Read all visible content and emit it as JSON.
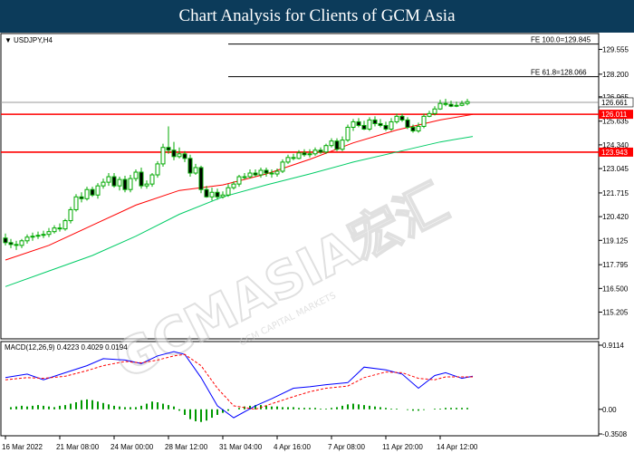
{
  "header": {
    "title": "Chart Analysis for Clients of GCM Asia"
  },
  "symbol_label": "USDJPY,H4",
  "watermark": {
    "main": "GCMASIA宏汇",
    "sub": "GCM CAPITAL MARKETS"
  },
  "chart_data": [
    {
      "type": "line",
      "title": "USDJPY,H4",
      "xlabel": "",
      "ylabel": "",
      "x_tick_labels": [
        "16 Mar 2022",
        "21 Mar 08:00",
        "24 Mar 00:00",
        "28 Mar 12:00",
        "31 Mar 04:00",
        "4 Apr 16:00",
        "7 Apr 08:00",
        "11 Apr 20:00",
        "14 Apr 12:00"
      ],
      "y_ticks": [
        "129.555",
        "128.200",
        "126.965",
        "125.635",
        "124.340",
        "123.045",
        "121.715",
        "120.420",
        "119.125",
        "117.795",
        "116.500",
        "115.205"
      ],
      "ylim": [
        115.205,
        130.2
      ],
      "price_levels": [
        {
          "label": "FE 100.0=129.845",
          "value": 129.845,
          "color": "#000000"
        },
        {
          "label": "FE 61.8=128.066",
          "value": 128.066,
          "color": "#000000"
        },
        {
          "label": "126.661",
          "value": 126.661,
          "color": "#808080"
        },
        {
          "label": "126.011",
          "value": 126.011,
          "color": "#ff0000"
        },
        {
          "label": "123.943",
          "value": 123.943,
          "color": "#ff0000"
        }
      ],
      "series": [
        {
          "kind": "candles",
          "color": "#00aa00",
          "open": [
            119.25,
            119.0,
            118.9,
            118.85,
            119.1,
            119.3,
            119.35,
            119.4,
            119.45,
            119.6,
            119.8,
            119.75,
            120.2,
            120.8,
            121.5,
            121.4,
            121.9,
            121.6,
            122.1,
            122.3,
            122.6,
            122.1,
            122.45,
            121.9,
            122.5,
            122.85,
            122.1,
            122.2,
            122.7,
            123.3,
            124.2,
            124.05,
            123.7,
            123.85,
            123.6,
            122.8,
            123.1,
            121.9,
            121.5,
            121.75,
            121.5,
            121.6,
            122.0,
            122.2,
            122.6,
            122.6,
            122.8,
            122.7,
            122.95,
            122.8,
            122.75,
            122.9,
            123.4,
            123.65,
            123.6,
            123.9,
            123.8,
            123.85,
            124.05,
            123.95,
            124.3,
            124.55,
            124.1,
            124.6,
            125.3,
            125.6,
            125.4,
            125.2,
            125.7,
            125.5,
            125.4,
            125.2,
            125.6,
            125.9,
            125.7,
            125.3,
            125.1,
            125.35,
            125.9,
            126.05,
            126.3,
            126.6,
            126.55,
            126.45,
            126.5,
            126.6
          ],
          "high": [
            119.5,
            119.2,
            119.1,
            119.2,
            119.45,
            119.55,
            119.6,
            119.65,
            119.8,
            119.95,
            120.05,
            120.3,
            120.95,
            121.65,
            121.75,
            122.05,
            122.05,
            122.25,
            122.5,
            122.8,
            122.8,
            122.6,
            122.65,
            122.7,
            123.0,
            123.1,
            122.4,
            122.8,
            123.45,
            124.4,
            125.35,
            124.5,
            124.2,
            124.0,
            123.8,
            123.3,
            123.2,
            122.1,
            122.0,
            121.95,
            121.8,
            122.2,
            122.35,
            122.7,
            122.8,
            123.0,
            123.0,
            123.1,
            123.1,
            123.0,
            123.05,
            123.55,
            123.8,
            123.85,
            124.05,
            124.1,
            124.1,
            124.2,
            124.2,
            124.4,
            124.7,
            124.7,
            124.8,
            125.45,
            125.75,
            125.8,
            125.65,
            125.85,
            125.9,
            125.75,
            125.6,
            125.8,
            126.05,
            126.05,
            125.85,
            125.45,
            125.55,
            126.05,
            126.2,
            126.45,
            126.8,
            126.85,
            126.75,
            126.7,
            126.75,
            126.85
          ],
          "low": [
            118.85,
            118.7,
            118.6,
            118.7,
            118.95,
            119.1,
            119.2,
            119.25,
            119.3,
            119.5,
            119.6,
            119.65,
            120.05,
            120.7,
            121.2,
            121.3,
            121.5,
            121.4,
            121.95,
            122.1,
            122.0,
            121.85,
            121.75,
            121.75,
            122.35,
            121.95,
            121.95,
            122.05,
            122.55,
            123.15,
            123.85,
            123.5,
            123.6,
            123.4,
            122.6,
            122.7,
            121.7,
            121.45,
            121.3,
            121.35,
            121.4,
            121.5,
            121.9,
            122.05,
            122.45,
            122.5,
            122.6,
            122.55,
            122.6,
            122.55,
            122.6,
            122.8,
            123.3,
            123.5,
            123.55,
            123.7,
            123.65,
            123.75,
            123.85,
            123.85,
            124.2,
            124.0,
            124.0,
            124.5,
            125.1,
            125.3,
            125.15,
            125.1,
            125.35,
            125.3,
            125.1,
            125.1,
            125.5,
            125.6,
            125.2,
            125.0,
            125.0,
            125.25,
            125.85,
            125.95,
            126.25,
            126.45,
            126.4,
            126.4,
            126.45,
            126.5
          ],
          "close": [
            119.0,
            118.9,
            118.85,
            119.1,
            119.3,
            119.35,
            119.4,
            119.45,
            119.6,
            119.8,
            119.75,
            120.2,
            120.8,
            121.5,
            121.4,
            121.9,
            121.6,
            122.1,
            122.3,
            122.6,
            122.1,
            122.45,
            121.9,
            122.5,
            122.85,
            122.1,
            122.2,
            122.7,
            123.3,
            124.2,
            124.05,
            123.7,
            123.85,
            123.6,
            122.8,
            123.1,
            121.9,
            121.5,
            121.75,
            121.5,
            121.6,
            122.0,
            122.2,
            122.6,
            122.6,
            122.8,
            122.7,
            122.95,
            122.8,
            122.75,
            122.9,
            123.4,
            123.65,
            123.6,
            123.9,
            123.8,
            123.85,
            124.05,
            123.95,
            124.3,
            124.55,
            124.1,
            124.6,
            125.3,
            125.6,
            125.4,
            125.2,
            125.7,
            125.5,
            125.4,
            125.2,
            125.6,
            125.9,
            125.7,
            125.3,
            125.1,
            125.35,
            125.9,
            126.05,
            126.3,
            126.6,
            126.55,
            126.45,
            126.5,
            126.6,
            126.7
          ]
        },
        {
          "kind": "ma",
          "color": "#ff0000",
          "x": [
            0,
            8,
            16,
            24,
            32,
            40,
            48,
            56,
            64,
            72,
            80,
            86
          ],
          "values": [
            118.05,
            118.85,
            119.95,
            121.05,
            121.85,
            122.15,
            122.75,
            123.55,
            124.45,
            125.15,
            125.7,
            126.0
          ]
        },
        {
          "kind": "ma",
          "color": "#00cc66",
          "x": [
            0,
            8,
            16,
            24,
            32,
            40,
            48,
            56,
            64,
            72,
            80,
            86
          ],
          "values": [
            116.6,
            117.45,
            118.3,
            119.35,
            120.55,
            121.5,
            122.15,
            122.75,
            123.4,
            123.95,
            124.5,
            124.8
          ]
        }
      ]
    },
    {
      "type": "bar",
      "title": "MACD(12,26,9) 0.4223 0.4029 0.0194",
      "xlabel": "",
      "ylabel": "",
      "y_ticks": [
        "0.9114",
        "0.00",
        "-0.3508"
      ],
      "ylim": [
        -0.3508,
        0.9114
      ],
      "series": [
        {
          "name": "histogram",
          "kind": "histogram",
          "color": "#009900",
          "values": [
            0.0,
            0.03,
            0.04,
            0.05,
            0.04,
            0.05,
            0.06,
            0.05,
            0.04,
            0.03,
            0.05,
            0.06,
            0.08,
            0.1,
            0.13,
            0.14,
            0.13,
            0.11,
            0.09,
            0.07,
            0.05,
            0.04,
            0.03,
            0.03,
            0.03,
            0.05,
            0.08,
            0.11,
            0.1,
            0.08,
            0.06,
            0.04,
            -0.02,
            -0.08,
            -0.14,
            -0.17,
            -0.18,
            -0.16,
            -0.12,
            -0.08,
            -0.05,
            -0.02,
            0.0,
            0.02,
            0.04,
            0.05,
            0.06,
            0.06,
            0.05,
            0.04,
            0.04,
            0.03,
            0.03,
            0.03,
            0.02,
            0.02,
            0.02,
            0.02,
            0.01,
            0.01,
            0.02,
            0.03,
            0.05,
            0.07,
            0.08,
            0.07,
            0.06,
            0.05,
            0.04,
            0.03,
            0.02,
            0.01,
            0.01,
            0.0,
            -0.01,
            -0.02,
            -0.02,
            -0.01,
            0.0,
            0.01,
            0.01,
            0.02,
            0.02,
            0.02,
            0.02,
            0.02
          ]
        },
        {
          "name": "macd",
          "kind": "line",
          "color": "#0000ff",
          "x": [
            0,
            4,
            7,
            11,
            15,
            18,
            22,
            25,
            28,
            31,
            33,
            36,
            39,
            42,
            46,
            49,
            53,
            56,
            59,
            63,
            66,
            70,
            73,
            76,
            79,
            81,
            84,
            86
          ],
          "values": [
            0.45,
            0.5,
            0.42,
            0.52,
            0.62,
            0.72,
            0.7,
            0.65,
            0.76,
            0.82,
            0.78,
            0.45,
            0.05,
            -0.12,
            0.05,
            0.15,
            0.3,
            0.32,
            0.35,
            0.38,
            0.6,
            0.56,
            0.5,
            0.3,
            0.48,
            0.52,
            0.44,
            0.47
          ]
        },
        {
          "name": "signal",
          "kind": "line",
          "color": "#ff0000",
          "dashed": true,
          "x": [
            0,
            4,
            7,
            11,
            15,
            18,
            22,
            25,
            28,
            31,
            33,
            36,
            39,
            42,
            46,
            49,
            53,
            56,
            59,
            63,
            66,
            70,
            73,
            76,
            79,
            81,
            84,
            86
          ],
          "values": [
            0.42,
            0.45,
            0.44,
            0.47,
            0.55,
            0.62,
            0.68,
            0.66,
            0.7,
            0.76,
            0.78,
            0.62,
            0.3,
            0.05,
            0.0,
            0.08,
            0.18,
            0.25,
            0.3,
            0.33,
            0.45,
            0.53,
            0.52,
            0.44,
            0.42,
            0.46,
            0.46,
            0.46
          ]
        }
      ]
    }
  ]
}
